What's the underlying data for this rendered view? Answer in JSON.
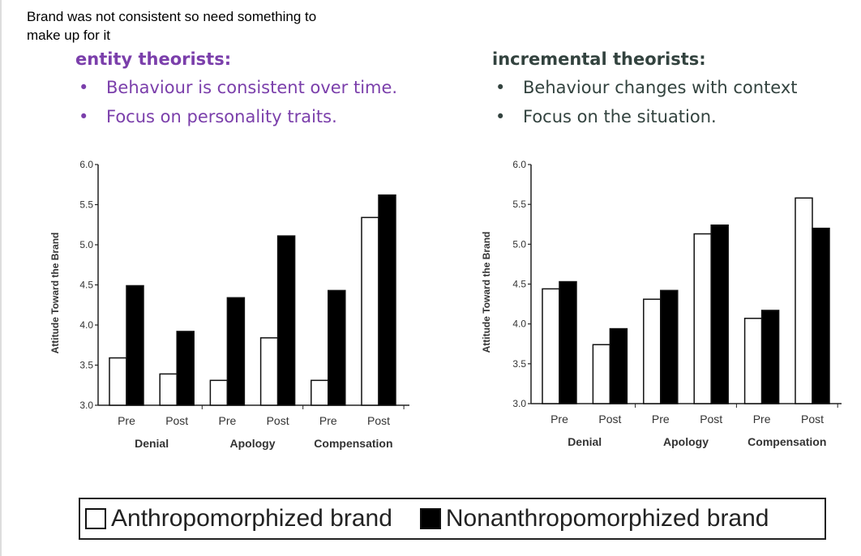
{
  "note": "Brand was not consistent so need something to make up for it",
  "left_panel": {
    "title": "entity theorists:",
    "bullets": [
      "Behaviour is consistent over time.",
      "Focus on personality traits."
    ],
    "color": "#7b3fab"
  },
  "right_panel": {
    "title": "incremental theorists:",
    "bullets": [
      "Behaviour changes with context",
      "Focus on the situation."
    ],
    "color": "#33433f"
  },
  "legend": {
    "items": [
      {
        "label": "Anthropomorphized brand",
        "color": "#ffffff"
      },
      {
        "label": "Nonanthropomorphized brand",
        "color": "#000000"
      }
    ]
  },
  "chart_data": [
    {
      "type": "bar",
      "title": "entity theorists",
      "ylabel": "Attitude Toward the Brand",
      "ylim": [
        3.0,
        6.0
      ],
      "yticks": [
        "3.0",
        "3.5",
        "4.0",
        "4.5",
        "5.0",
        "5.5",
        "6.0"
      ],
      "categories": [
        "Pre",
        "Post",
        "Pre",
        "Post",
        "Pre",
        "Post"
      ],
      "groups": [
        "Denial",
        "Apology",
        "Compensation"
      ],
      "series": [
        {
          "name": "Anthropomorphized brand",
          "values": [
            3.59,
            3.39,
            3.31,
            3.84,
            3.31,
            5.34
          ]
        },
        {
          "name": "Nonanthropomorphized brand",
          "values": [
            4.49,
            3.92,
            4.34,
            5.11,
            4.43,
            5.62
          ]
        }
      ]
    },
    {
      "type": "bar",
      "title": "incremental theorists",
      "ylabel": "Attitude Toward the Brand",
      "ylim": [
        3.0,
        6.0
      ],
      "yticks": [
        "3.0",
        "3.5",
        "4.0",
        "4.5",
        "5.0",
        "5.5",
        "6.0"
      ],
      "categories": [
        "Pre",
        "Post",
        "Pre",
        "Post",
        "Pre",
        "Post"
      ],
      "groups": [
        "Denial",
        "Apology",
        "Compensation"
      ],
      "series": [
        {
          "name": "Anthropomorphized brand",
          "values": [
            4.44,
            3.74,
            4.31,
            5.13,
            4.07,
            5.58
          ]
        },
        {
          "name": "Nonanthropomorphized brand",
          "values": [
            4.53,
            3.94,
            4.42,
            5.24,
            4.17,
            5.2
          ]
        }
      ]
    }
  ]
}
